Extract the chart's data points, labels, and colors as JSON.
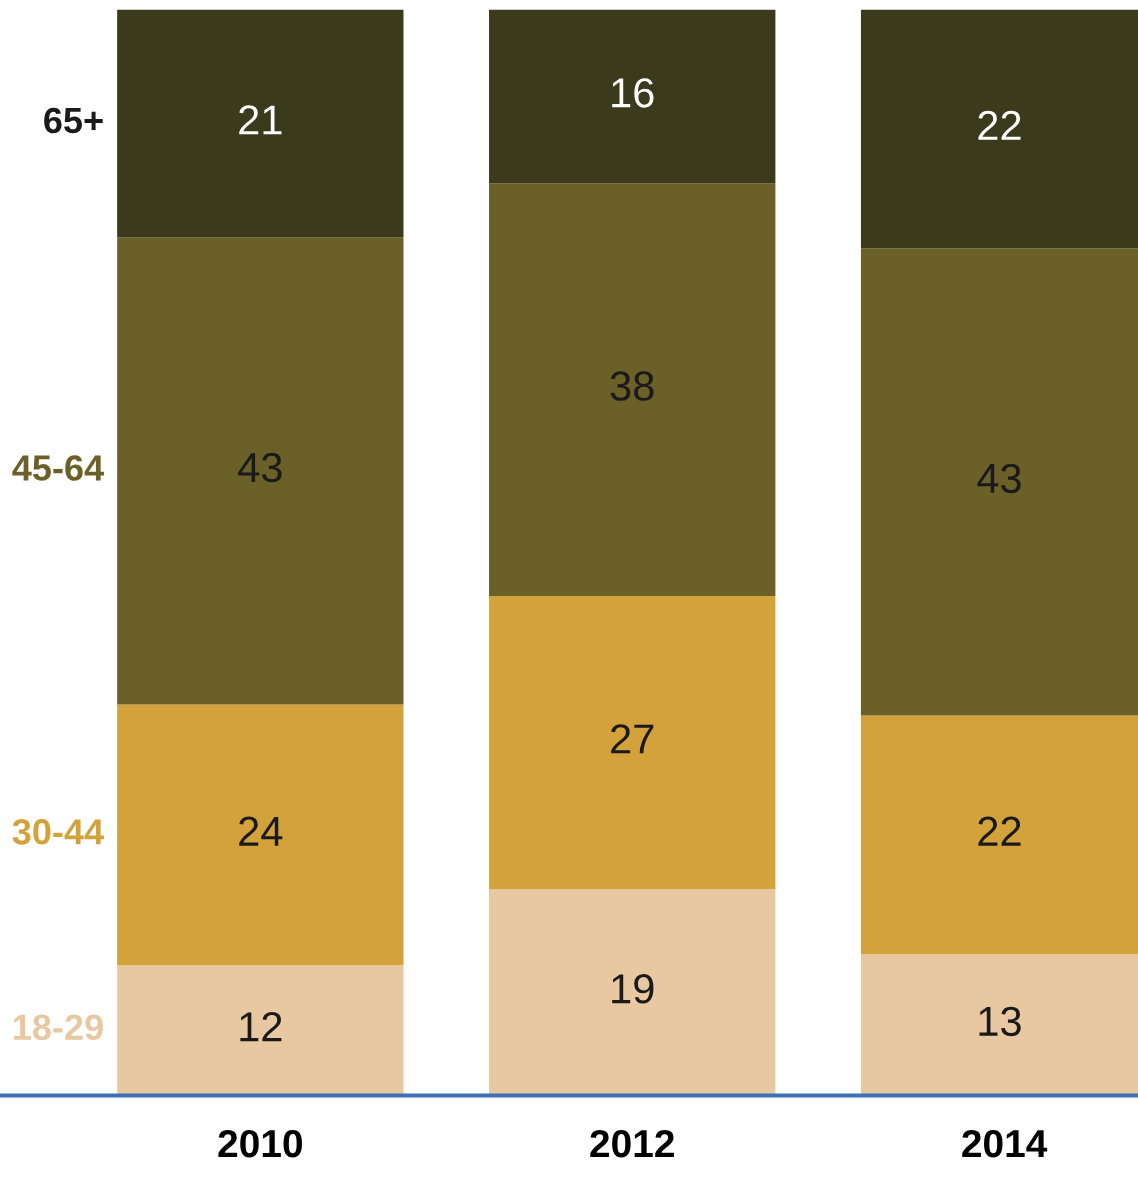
{
  "chart_data": {
    "type": "bar",
    "stacked": true,
    "data_labels": true,
    "legend": "left",
    "categories": [
      "2010",
      "2012",
      "2014"
    ],
    "series": [
      {
        "name": "18-29",
        "color": "#e8c8a0",
        "values": [
          12,
          19,
          13
        ]
      },
      {
        "name": "30-44",
        "color": "#d4a23a",
        "values": [
          24,
          27,
          22
        ]
      },
      {
        "name": "45-64",
        "color": "#6b6027",
        "values": [
          43,
          38,
          43
        ]
      },
      {
        "name": "65+",
        "color": "#3b3a1c",
        "values": [
          21,
          16,
          22
        ]
      }
    ]
  }
}
